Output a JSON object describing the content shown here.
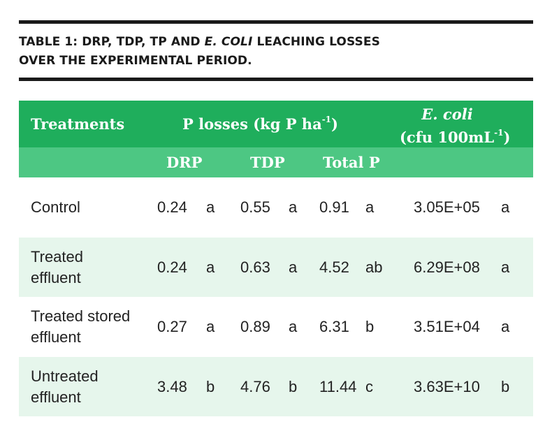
{
  "caption": {
    "line1_part1": "TABLE 1: DRP, TDP, TP AND ",
    "line1_italic": "E. COLI",
    "line1_part2": " LEACHING LOSSES",
    "line2": "OVER THE EXPERIMENTAL PERIOD."
  },
  "header": {
    "treatments": "Treatments",
    "p_losses_main": "P losses (kg P ha",
    "p_losses_sup": "-1",
    "p_losses_close": ")",
    "ecoli_italic": "E. coli",
    "ecoli_unit_main": "(cfu 100mL",
    "ecoli_unit_sup": "-1",
    "ecoli_unit_close": ")",
    "drp": "DRP",
    "tdp": "TDP",
    "total_p": "Total P"
  },
  "rows": [
    {
      "treatment": [
        "Control"
      ],
      "drp": "0.24",
      "drp_sig": "a",
      "tdp": "0.55",
      "tdp_sig": "a",
      "tp": "0.91",
      "tp_sig": "a",
      "ecoli": "3.05E+05",
      "ecoli_sig": "a"
    },
    {
      "treatment": [
        "Treated",
        "effluent"
      ],
      "drp": "0.24",
      "drp_sig": "a",
      "tdp": "0.63",
      "tdp_sig": "a",
      "tp": "4.52",
      "tp_sig": "ab",
      "ecoli": "6.29E+08",
      "ecoli_sig": "a"
    },
    {
      "treatment": [
        "Treated stored",
        "effluent"
      ],
      "drp": "0.27",
      "drp_sig": "a",
      "tdp": "0.89",
      "tdp_sig": "a",
      "tp": "6.31",
      "tp_sig": "b",
      "ecoli": "3.51E+04",
      "ecoli_sig": "a"
    },
    {
      "treatment": [
        "Untreated",
        "effluent"
      ],
      "drp": "3.48",
      "drp_sig": "b",
      "tdp": "4.76",
      "tdp_sig": "b",
      "tp": "11.44",
      "tp_sig": "c",
      "ecoli": "3.63E+10",
      "ecoli_sig": "b"
    }
  ]
}
